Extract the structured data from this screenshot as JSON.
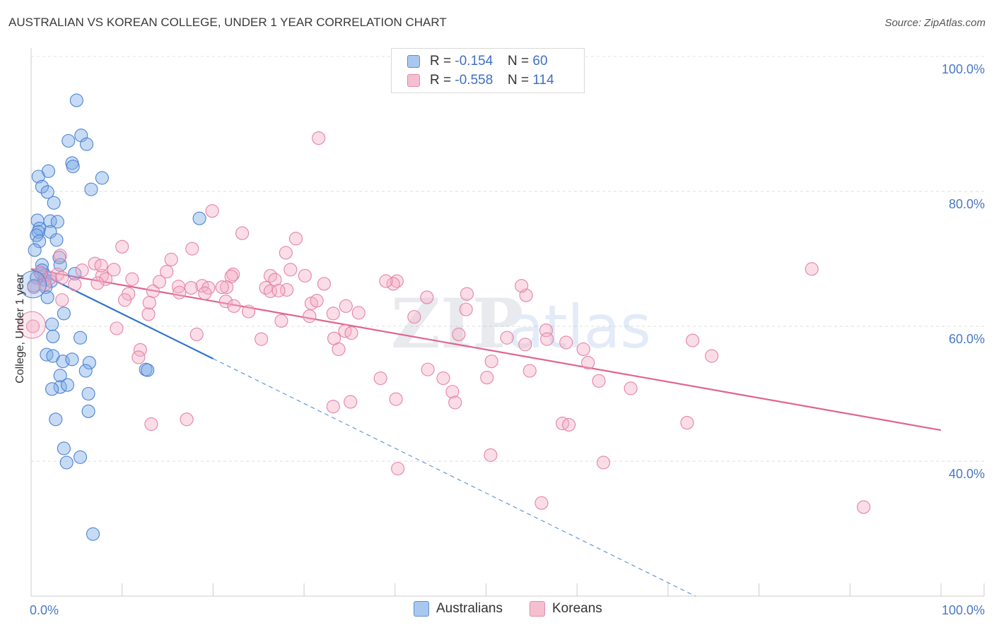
{
  "title": "AUSTRALIAN VS KOREAN COLLEGE, UNDER 1 YEAR CORRELATION CHART",
  "source": "Source: ZipAtlas.com",
  "watermark": {
    "zip": "ZIP",
    "atlas": "atlas"
  },
  "legend": {
    "rows": [
      {
        "r_label": "R =",
        "r_value": "-0.154",
        "n_label": "N =",
        "n_value": "60",
        "color": "#a9c8ef",
        "border": "#5b8fd6"
      },
      {
        "r_label": "R =",
        "r_value": "-0.558",
        "n_label": "N =",
        "n_value": "114",
        "color": "#f6bfd0",
        "border": "#e58aa8"
      }
    ]
  },
  "bottom_legend": [
    {
      "label": "Australians",
      "color": "#a9c8ef",
      "border": "#5b8fd6"
    },
    {
      "label": "Koreans",
      "color": "#f6bfd0",
      "border": "#e58aa8"
    }
  ],
  "chart_data": {
    "type": "scatter",
    "title": "AUSTRALIAN VS KOREAN COLLEGE, UNDER 1 YEAR CORRELATION CHART",
    "xlabel": "",
    "ylabel": "College, Under 1 year",
    "xlim": [
      0,
      100
    ],
    "ylim": [
      20,
      100
    ],
    "x_tick_labels": [
      "0.0%",
      "100.0%"
    ],
    "y_ticks": [
      40,
      60,
      80,
      100
    ],
    "y_tick_labels": [
      "40.0%",
      "60.0%",
      "80.0%",
      "100.0%"
    ],
    "grid": true,
    "legend_position": "top-center",
    "series": [
      {
        "name": "Australians",
        "color": "#7aaae6",
        "stroke": "#4d84d1",
        "line_color": "#2f74d0",
        "trend": {
          "x": [
            0,
            20
          ],
          "y": [
            68.5,
            55.2
          ]
        },
        "trend_extension": {
          "x": [
            20,
            73
          ],
          "y": [
            55.2,
            20
          ]
        },
        "points": [
          [
            5.0,
            93.5
          ],
          [
            5.5,
            88.3
          ],
          [
            4.1,
            87.5
          ],
          [
            6.1,
            87.0
          ],
          [
            4.5,
            84.2
          ],
          [
            4.6,
            83.7
          ],
          [
            1.9,
            83.0
          ],
          [
            0.8,
            82.2
          ],
          [
            7.8,
            82.0
          ],
          [
            1.2,
            80.7
          ],
          [
            1.8,
            79.9
          ],
          [
            6.6,
            80.3
          ],
          [
            2.5,
            78.3
          ],
          [
            18.5,
            76.0
          ],
          [
            0.7,
            75.7
          ],
          [
            2.1,
            75.6
          ],
          [
            2.9,
            75.5
          ],
          [
            0.9,
            74.5
          ],
          [
            0.8,
            74.0
          ],
          [
            2.1,
            74.0
          ],
          [
            0.6,
            73.5
          ],
          [
            0.9,
            72.6
          ],
          [
            2.8,
            72.8
          ],
          [
            0.4,
            71.3
          ],
          [
            3.1,
            70.2
          ],
          [
            1.2,
            69.1
          ],
          [
            3.2,
            69.1
          ],
          [
            1.2,
            68.3
          ],
          [
            1.5,
            67.6
          ],
          [
            1.1,
            67.8
          ],
          [
            4.8,
            67.8
          ],
          [
            1.5,
            66.9
          ],
          [
            2.2,
            66.7
          ],
          [
            1.6,
            65.8
          ],
          [
            1.8,
            64.3
          ],
          [
            0.6,
            67.2
          ],
          [
            3.6,
            61.9
          ],
          [
            2.3,
            60.3
          ],
          [
            2.4,
            58.5
          ],
          [
            5.4,
            58.3
          ],
          [
            1.7,
            55.8
          ],
          [
            2.4,
            55.6
          ],
          [
            3.5,
            54.8
          ],
          [
            4.5,
            55.1
          ],
          [
            6.4,
            54.6
          ],
          [
            12.6,
            53.6
          ],
          [
            12.8,
            53.5
          ],
          [
            6.0,
            53.4
          ],
          [
            3.2,
            52.7
          ],
          [
            3.2,
            51.0
          ],
          [
            4.0,
            51.3
          ],
          [
            2.3,
            50.7
          ],
          [
            6.3,
            50.0
          ],
          [
            6.3,
            47.4
          ],
          [
            2.7,
            46.2
          ],
          [
            3.6,
            41.9
          ],
          [
            5.4,
            40.6
          ],
          [
            3.9,
            39.8
          ],
          [
            6.8,
            29.2
          ],
          [
            0.3,
            66.0
          ]
        ]
      },
      {
        "name": "Koreans",
        "color": "#f4afc6",
        "stroke": "#e583a5",
        "line_color": "#e06391",
        "trend": {
          "x": [
            0,
            100
          ],
          "y": [
            68.5,
            44.6
          ]
        },
        "points": [
          [
            31.6,
            87.9
          ],
          [
            19.9,
            77.1
          ],
          [
            23.2,
            73.8
          ],
          [
            29.1,
            73.0
          ],
          [
            10.0,
            71.8
          ],
          [
            17.7,
            71.5
          ],
          [
            28.0,
            70.9
          ],
          [
            3.2,
            70.5
          ],
          [
            7.0,
            69.3
          ],
          [
            15.4,
            69.9
          ],
          [
            9.1,
            68.4
          ],
          [
            5.6,
            68.3
          ],
          [
            1.0,
            68.0
          ],
          [
            2.9,
            67.7
          ],
          [
            7.8,
            67.5
          ],
          [
            2.1,
            67.2
          ],
          [
            3.4,
            67.2
          ],
          [
            8.2,
            67.0
          ],
          [
            11.1,
            67.0
          ],
          [
            14.9,
            68.1
          ],
          [
            22.2,
            67.7
          ],
          [
            22.0,
            67.4
          ],
          [
            26.3,
            67.5
          ],
          [
            26.8,
            66.9
          ],
          [
            30.1,
            67.5
          ],
          [
            40.2,
            66.7
          ],
          [
            32.2,
            66.3
          ],
          [
            39.8,
            66.3
          ],
          [
            28.5,
            68.4
          ],
          [
            1.5,
            66.2
          ],
          [
            4.8,
            66.2
          ],
          [
            7.3,
            66.4
          ],
          [
            13.4,
            65.2
          ],
          [
            16.2,
            65.9
          ],
          [
            17.6,
            65.7
          ],
          [
            18.8,
            66.0
          ],
          [
            19.5,
            65.7
          ],
          [
            21.5,
            65.8
          ],
          [
            25.8,
            65.7
          ],
          [
            26.3,
            65.2
          ],
          [
            28.1,
            65.4
          ],
          [
            14.1,
            66.6
          ],
          [
            16.3,
            65.0
          ],
          [
            10.7,
            64.8
          ],
          [
            10.3,
            63.9
          ],
          [
            19.1,
            64.9
          ],
          [
            21.4,
            63.7
          ],
          [
            30.8,
            63.4
          ],
          [
            31.4,
            63.8
          ],
          [
            34.6,
            63.0
          ],
          [
            43.5,
            64.3
          ],
          [
            47.9,
            64.8
          ],
          [
            54.4,
            64.6
          ],
          [
            53.9,
            66.0
          ],
          [
            3.4,
            63.9
          ],
          [
            22.3,
            63.0
          ],
          [
            23.9,
            62.2
          ],
          [
            30.6,
            61.5
          ],
          [
            33.2,
            61.9
          ],
          [
            36.0,
            62.0
          ],
          [
            42.1,
            61.4
          ],
          [
            12.9,
            61.8
          ],
          [
            27.5,
            60.8
          ],
          [
            47.8,
            62.5
          ],
          [
            34.5,
            59.3
          ],
          [
            47.0,
            58.8
          ],
          [
            56.6,
            59.4
          ],
          [
            9.4,
            59.7
          ],
          [
            18.2,
            58.8
          ],
          [
            25.3,
            58.1
          ],
          [
            33.3,
            58.2
          ],
          [
            35.2,
            59.0
          ],
          [
            52.3,
            58.3
          ],
          [
            56.7,
            58.1
          ],
          [
            72.7,
            57.9
          ],
          [
            58.8,
            57.6
          ],
          [
            54.3,
            57.3
          ],
          [
            33.8,
            56.6
          ],
          [
            12.0,
            56.5
          ],
          [
            60.7,
            56.6
          ],
          [
            74.8,
            55.6
          ],
          [
            11.8,
            55.4
          ],
          [
            50.6,
            54.8
          ],
          [
            61.2,
            54.6
          ],
          [
            43.6,
            53.6
          ],
          [
            54.8,
            53.4
          ],
          [
            38.4,
            52.3
          ],
          [
            45.3,
            52.3
          ],
          [
            50.1,
            52.4
          ],
          [
            62.4,
            51.9
          ],
          [
            46.3,
            50.3
          ],
          [
            65.9,
            50.8
          ],
          [
            40.1,
            49.2
          ],
          [
            46.6,
            48.7
          ],
          [
            35.1,
            48.8
          ],
          [
            33.2,
            48.1
          ],
          [
            17.1,
            46.2
          ],
          [
            13.2,
            45.5
          ],
          [
            58.4,
            45.6
          ],
          [
            59.1,
            45.4
          ],
          [
            72.1,
            45.7
          ],
          [
            50.5,
            40.9
          ],
          [
            62.9,
            39.8
          ],
          [
            40.3,
            38.9
          ],
          [
            56.1,
            33.8
          ],
          [
            91.5,
            33.2
          ],
          [
            85.8,
            68.5
          ],
          [
            39.0,
            66.7
          ],
          [
            7.7,
            69.0
          ],
          [
            27.2,
            65.3
          ],
          [
            21.0,
            65.8
          ],
          [
            0.2,
            60.0
          ],
          [
            0.3,
            65.8
          ],
          [
            13.0,
            63.5
          ]
        ]
      }
    ]
  }
}
